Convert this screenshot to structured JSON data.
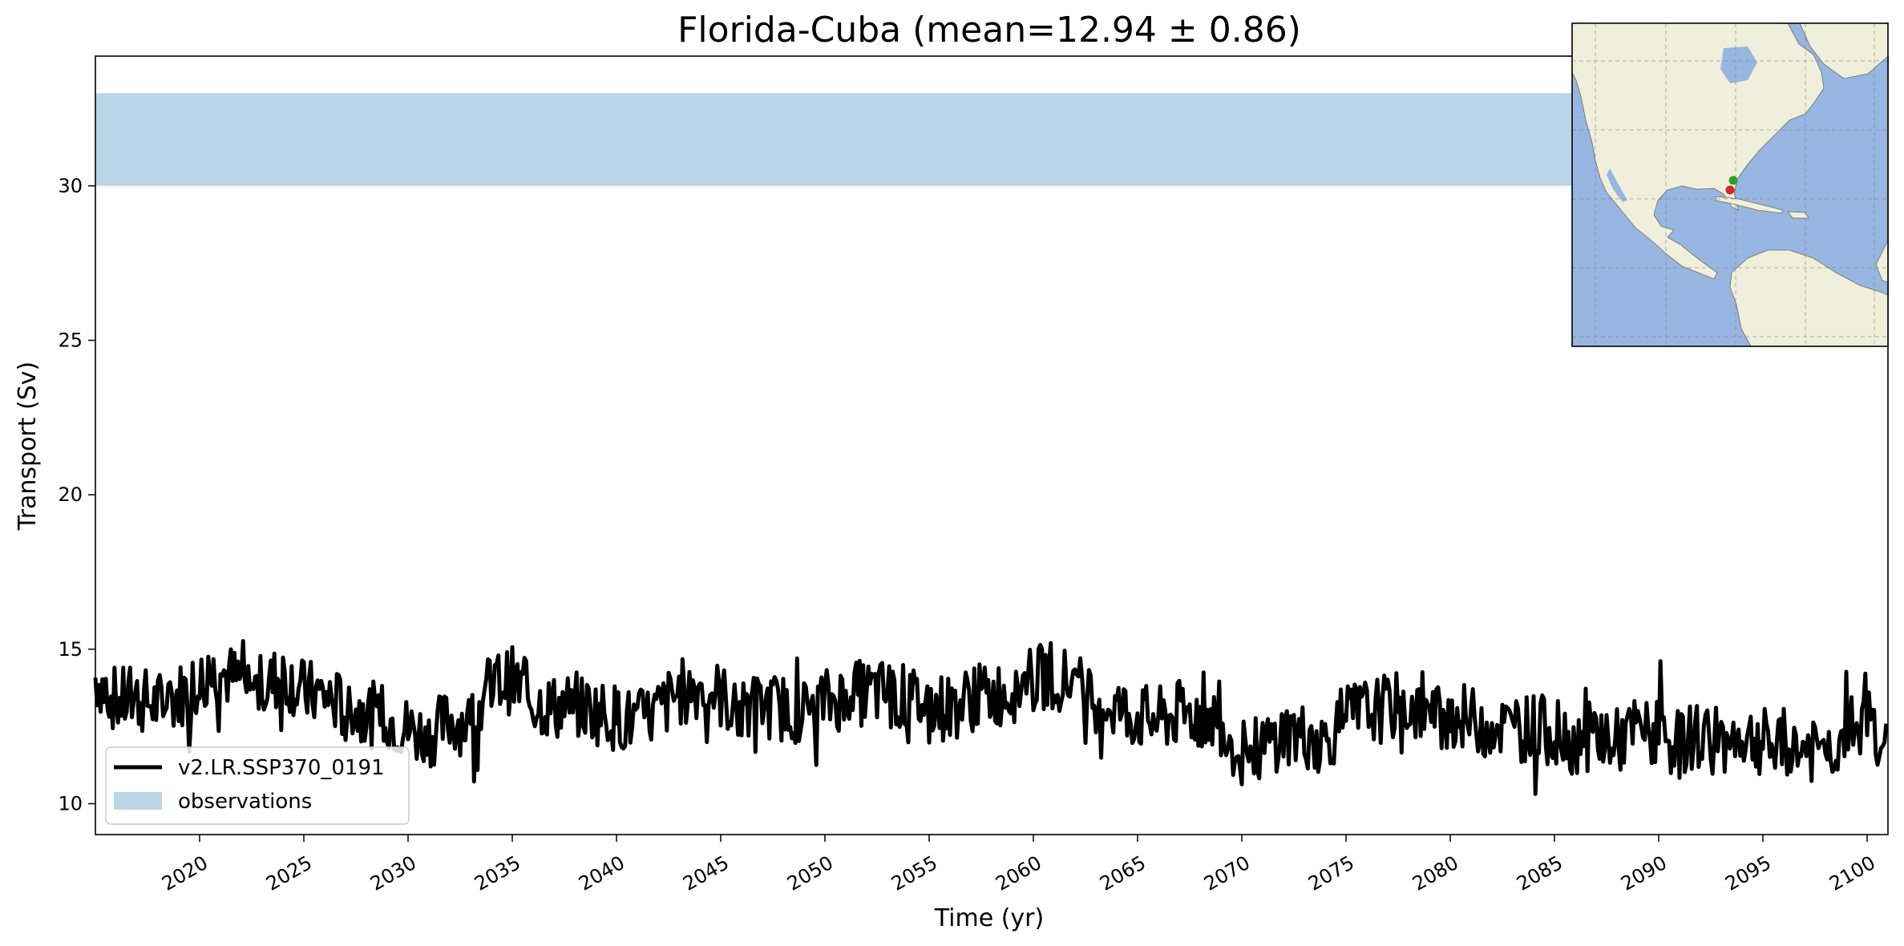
{
  "chart_data": {
    "type": "line",
    "title": "Florida-Cuba (mean=12.94 ± 0.86)",
    "xlabel": "Time (yr)",
    "ylabel": "Transport (Sv)",
    "xlim": [
      2015,
      2101
    ],
    "ylim": [
      9,
      34.2
    ],
    "xticks": [
      2020,
      2025,
      2030,
      2035,
      2040,
      2045,
      2050,
      2055,
      2060,
      2065,
      2070,
      2075,
      2080,
      2085,
      2090,
      2095,
      2100
    ],
    "xtick_labels": [
      "2020",
      "2025",
      "2030",
      "2035",
      "2040",
      "2045",
      "2050",
      "2055",
      "2060",
      "2065",
      "2070",
      "2075",
      "2080",
      "2085",
      "2090",
      "2095",
      "2100"
    ],
    "yticks": [
      10,
      15,
      20,
      25,
      30
    ],
    "ytick_labels": [
      "10",
      "15",
      "20",
      "25",
      "30"
    ],
    "observations": {
      "label": "observations",
      "ymin": 30,
      "ymax": 33,
      "color": "#bad5e8"
    },
    "series": [
      {
        "name": "v2.LR.SSP370_0191",
        "color": "#000000",
        "x": [
          2015,
          2016,
          2017,
          2018,
          2019,
          2020,
          2021,
          2022,
          2023,
          2024,
          2025,
          2026,
          2027,
          2028,
          2029,
          2030,
          2031,
          2032,
          2033,
          2034,
          2035,
          2036,
          2037,
          2038,
          2039,
          2040,
          2041,
          2042,
          2043,
          2044,
          2045,
          2046,
          2047,
          2048,
          2049,
          2050,
          2051,
          2052,
          2053,
          2054,
          2055,
          2056,
          2057,
          2058,
          2059,
          2060,
          2061,
          2062,
          2063,
          2064,
          2065,
          2066,
          2067,
          2068,
          2069,
          2070,
          2071,
          2072,
          2073,
          2074,
          2075,
          2076,
          2077,
          2078,
          2079,
          2080,
          2081,
          2082,
          2083,
          2084,
          2085,
          2086,
          2087,
          2088,
          2089,
          2090,
          2091,
          2092,
          2093,
          2094,
          2095,
          2096,
          2097,
          2098,
          2099,
          2100,
          2101
        ],
        "values": [
          14.1,
          13.3,
          13.4,
          13.2,
          13.5,
          14.0,
          14.3,
          13.9,
          13.7,
          14.2,
          13.6,
          13.5,
          13.1,
          12.9,
          12.8,
          12.4,
          12.2,
          12.7,
          12.6,
          13.9,
          14.0,
          13.3,
          13.1,
          13.2,
          13.0,
          12.8,
          12.6,
          13.0,
          13.6,
          13.8,
          13.5,
          12.9,
          13.2,
          13.1,
          13.0,
          13.3,
          13.5,
          13.6,
          13.6,
          13.4,
          13.2,
          13.1,
          13.4,
          13.5,
          13.7,
          14.0,
          14.2,
          13.8,
          13.4,
          13.1,
          12.8,
          12.7,
          12.9,
          12.9,
          12.6,
          11.6,
          11.8,
          12.3,
          12.2,
          12.0,
          12.8,
          13.0,
          13.1,
          13.2,
          12.8,
          12.9,
          12.7,
          12.6,
          12.4,
          12.5,
          12.3,
          12.0,
          12.3,
          12.0,
          12.4,
          12.1,
          11.9,
          12.3,
          12.0,
          12.2,
          12.0,
          11.7,
          11.8,
          11.6,
          12.3,
          12.7,
          12.2
        ]
      }
    ],
    "legend": {
      "location": "lower-left",
      "entries": [
        "v2.LR.SSP370_0191",
        "observations"
      ]
    },
    "inset_map": {
      "description_hidden": true,
      "ocean_color": "#97b6e1",
      "land_color": "#efefdb",
      "markers": [
        {
          "name": "start",
          "color": "#d62728"
        },
        {
          "name": "end",
          "color": "#2ca02c"
        }
      ]
    }
  }
}
